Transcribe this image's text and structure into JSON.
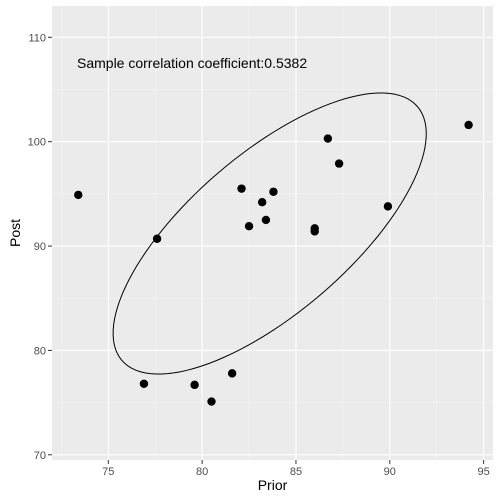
{
  "chart_data": {
    "type": "scatter",
    "xlabel": "Prior",
    "ylabel": "Post",
    "xlim": [
      72.0,
      95.5
    ],
    "ylim": [
      69.5,
      113.0
    ],
    "x_ticks": [
      75,
      80,
      85,
      90,
      95
    ],
    "y_ticks": [
      70,
      80,
      90,
      100,
      110
    ],
    "x_tick_labels": [
      "75",
      "80",
      "85",
      "90",
      "95"
    ],
    "y_tick_labels": [
      "70",
      "80",
      "90",
      "100",
      "110"
    ],
    "grid": true,
    "annotation": "Sample correlation coefficient:0.5382",
    "points": [
      {
        "x": 73.4,
        "y": 94.9
      },
      {
        "x": 76.9,
        "y": 76.8
      },
      {
        "x": 77.6,
        "y": 90.7
      },
      {
        "x": 79.6,
        "y": 76.7
      },
      {
        "x": 80.5,
        "y": 75.1
      },
      {
        "x": 81.6,
        "y": 77.8
      },
      {
        "x": 82.1,
        "y": 95.5
      },
      {
        "x": 82.5,
        "y": 91.9
      },
      {
        "x": 83.2,
        "y": 94.2
      },
      {
        "x": 83.4,
        "y": 92.5
      },
      {
        "x": 83.8,
        "y": 95.2
      },
      {
        "x": 86.0,
        "y": 91.7
      },
      {
        "x": 86.0,
        "y": 91.4
      },
      {
        "x": 86.7,
        "y": 100.3
      },
      {
        "x": 87.3,
        "y": 97.9
      },
      {
        "x": 89.9,
        "y": 93.8
      },
      {
        "x": 94.2,
        "y": 101.6
      }
    ],
    "ellipse": {
      "center": [
        83.6,
        91.2
      ],
      "semi_axes": [
        14.93,
        5.3
      ],
      "rotation_deg": 62.5
    },
    "colors": {
      "panel": "#ebebeb",
      "grid_major": "#ffffff",
      "grid_minor": "#f5f5f5",
      "point": "#000000",
      "ellipse": "#000000",
      "tick_label": "#4d4d4d"
    }
  }
}
